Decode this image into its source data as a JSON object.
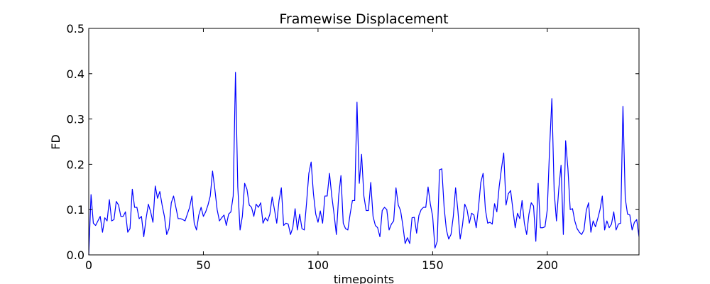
{
  "chart_data": {
    "type": "line",
    "title": "Framewise Displacement",
    "xlabel": "timepoints",
    "ylabel": "FD",
    "xlim": [
      0,
      240
    ],
    "ylim": [
      0,
      0.5
    ],
    "xticks": [
      0,
      50,
      100,
      150,
      200
    ],
    "yticks": [
      0.0,
      0.1,
      0.2,
      0.3,
      0.4,
      0.5
    ],
    "ytick_labels": [
      "0.0",
      "0.1",
      "0.2",
      "0.3",
      "0.4",
      "0.5"
    ],
    "grid": false,
    "series": [
      {
        "color": "#0000ff",
        "y": [
          0.0,
          0.133,
          0.07,
          0.065,
          0.075,
          0.085,
          0.05,
          0.082,
          0.075,
          0.122,
          0.075,
          0.078,
          0.118,
          0.11,
          0.085,
          0.085,
          0.095,
          0.05,
          0.058,
          0.145,
          0.105,
          0.105,
          0.08,
          0.085,
          0.04,
          0.08,
          0.112,
          0.095,
          0.072,
          0.152,
          0.125,
          0.14,
          0.11,
          0.085,
          0.045,
          0.058,
          0.115,
          0.13,
          0.105,
          0.08,
          0.08,
          0.078,
          0.075,
          0.09,
          0.105,
          0.13,
          0.07,
          0.055,
          0.088,
          0.105,
          0.085,
          0.095,
          0.11,
          0.13,
          0.185,
          0.145,
          0.1,
          0.075,
          0.082,
          0.088,
          0.065,
          0.09,
          0.095,
          0.13,
          0.403,
          0.15,
          0.055,
          0.085,
          0.158,
          0.145,
          0.11,
          0.105,
          0.085,
          0.112,
          0.105,
          0.115,
          0.07,
          0.082,
          0.075,
          0.09,
          0.128,
          0.1,
          0.07,
          0.12,
          0.148,
          0.065,
          0.07,
          0.068,
          0.045,
          0.06,
          0.102,
          0.055,
          0.09,
          0.058,
          0.055,
          0.115,
          0.18,
          0.205,
          0.135,
          0.09,
          0.072,
          0.097,
          0.07,
          0.13,
          0.13,
          0.18,
          0.13,
          0.09,
          0.045,
          0.13,
          0.175,
          0.07,
          0.058,
          0.055,
          0.09,
          0.12,
          0.12,
          0.337,
          0.158,
          0.222,
          0.13,
          0.098,
          0.098,
          0.16,
          0.085,
          0.065,
          0.06,
          0.04,
          0.098,
          0.105,
          0.1,
          0.055,
          0.068,
          0.075,
          0.148,
          0.11,
          0.098,
          0.065,
          0.025,
          0.038,
          0.025,
          0.082,
          0.083,
          0.048,
          0.087,
          0.1,
          0.105,
          0.105,
          0.15,
          0.112,
          0.085,
          0.015,
          0.03,
          0.188,
          0.19,
          0.105,
          0.055,
          0.035,
          0.045,
          0.085,
          0.148,
          0.098,
          0.035,
          0.065,
          0.112,
          0.1,
          0.07,
          0.092,
          0.088,
          0.06,
          0.105,
          0.16,
          0.18,
          0.1,
          0.07,
          0.072,
          0.068,
          0.113,
          0.095,
          0.15,
          0.19,
          0.225,
          0.11,
          0.135,
          0.142,
          0.1,
          0.06,
          0.092,
          0.08,
          0.12,
          0.07,
          0.045,
          0.09,
          0.115,
          0.108,
          0.03,
          0.158,
          0.06,
          0.06,
          0.062,
          0.1,
          0.235,
          0.345,
          0.14,
          0.075,
          0.145,
          0.198,
          0.045,
          0.252,
          0.19,
          0.1,
          0.102,
          0.075,
          0.058,
          0.05,
          0.045,
          0.055,
          0.098,
          0.115,
          0.05,
          0.075,
          0.062,
          0.08,
          0.1,
          0.13,
          0.055,
          0.075,
          0.06,
          0.068,
          0.095,
          0.055,
          0.068,
          0.07,
          0.328,
          0.125,
          0.09,
          0.088,
          0.055,
          0.072,
          0.078,
          0.04
        ]
      }
    ]
  }
}
